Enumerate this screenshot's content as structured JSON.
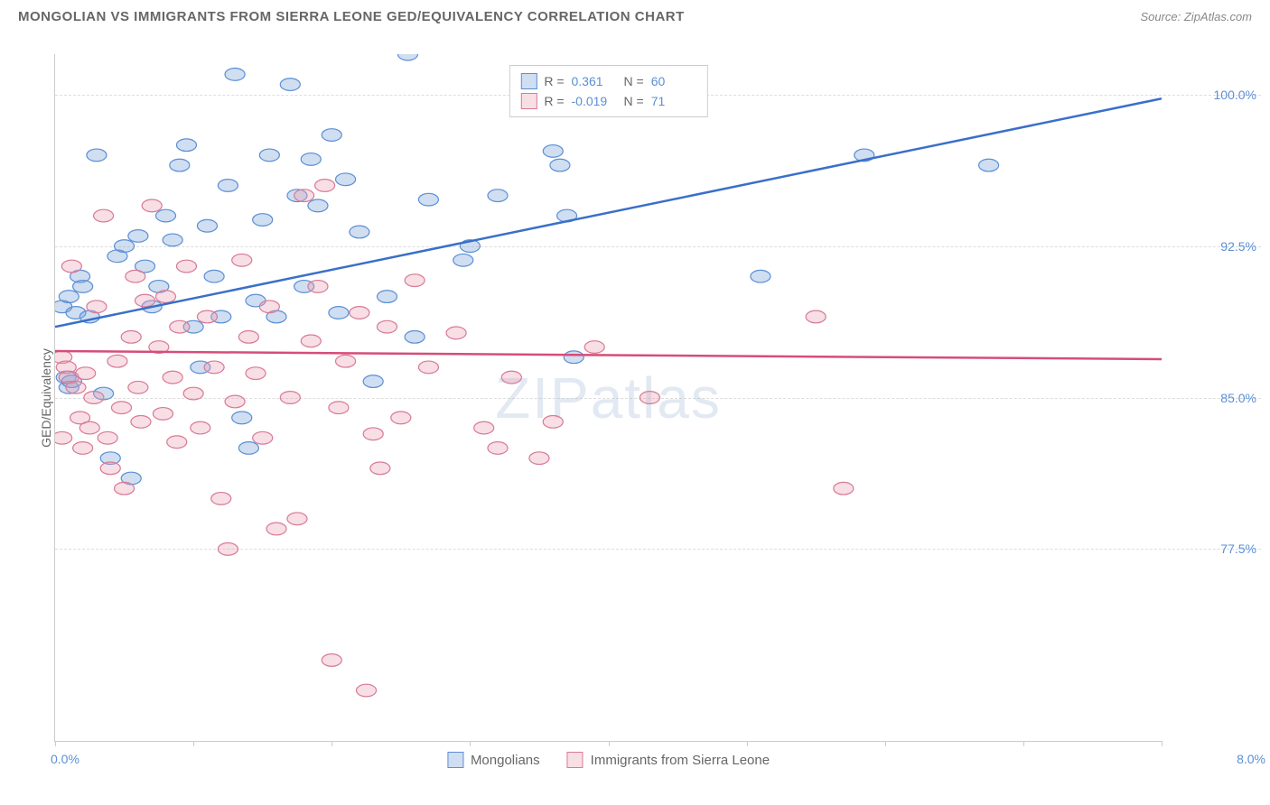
{
  "header": {
    "title": "MONGOLIAN VS IMMIGRANTS FROM SIERRA LEONE GED/EQUIVALENCY CORRELATION CHART",
    "source": "Source: ZipAtlas.com"
  },
  "chart": {
    "type": "scatter",
    "watermark": "ZIPatlas",
    "y_axis_label": "GED/Equivalency",
    "xlim": [
      0.0,
      8.0
    ],
    "ylim": [
      68.0,
      102.0
    ],
    "x_range_start": "0.0%",
    "x_range_end": "8.0%",
    "x_ticks": [
      0,
      1,
      2,
      3,
      4,
      5,
      6,
      7,
      8
    ],
    "y_gridlines": [
      77.5,
      85.0,
      92.5,
      100.0
    ],
    "y_tick_labels": [
      "77.5%",
      "85.0%",
      "92.5%",
      "100.0%"
    ],
    "grid_color": "#dddddd",
    "axis_color": "#cccccc",
    "background_color": "#ffffff",
    "label_color": "#5b8fd6",
    "series": [
      {
        "name": "Mongolians",
        "fill": "rgba(120,160,215,0.35)",
        "stroke": "#5b8fd6",
        "line_color": "#3a6fc9",
        "R": "0.361",
        "N": "60",
        "trend": {
          "x1": 0.0,
          "y1": 88.5,
          "x2": 8.0,
          "y2": 99.8
        },
        "points": [
          [
            0.05,
            89.5
          ],
          [
            0.08,
            86.0
          ],
          [
            0.1,
            85.5
          ],
          [
            0.1,
            90.0
          ],
          [
            0.12,
            85.8
          ],
          [
            0.15,
            89.2
          ],
          [
            0.18,
            91.0
          ],
          [
            0.2,
            90.5
          ],
          [
            0.25,
            89.0
          ],
          [
            0.3,
            97.0
          ],
          [
            0.35,
            85.2
          ],
          [
            0.4,
            82.0
          ],
          [
            0.45,
            92.0
          ],
          [
            0.5,
            92.5
          ],
          [
            0.55,
            81.0
          ],
          [
            0.6,
            93.0
          ],
          [
            0.65,
            91.5
          ],
          [
            0.7,
            89.5
          ],
          [
            0.75,
            90.5
          ],
          [
            0.8,
            94.0
          ],
          [
            0.85,
            92.8
          ],
          [
            0.9,
            96.5
          ],
          [
            0.95,
            97.5
          ],
          [
            1.0,
            88.5
          ],
          [
            1.05,
            86.5
          ],
          [
            1.1,
            93.5
          ],
          [
            1.15,
            91.0
          ],
          [
            1.2,
            89.0
          ],
          [
            1.25,
            95.5
          ],
          [
            1.3,
            101.0
          ],
          [
            1.35,
            84.0
          ],
          [
            1.4,
            82.5
          ],
          [
            1.45,
            89.8
          ],
          [
            1.5,
            93.8
          ],
          [
            1.55,
            97.0
          ],
          [
            1.6,
            89.0
          ],
          [
            1.7,
            100.5
          ],
          [
            1.75,
            95.0
          ],
          [
            1.8,
            90.5
          ],
          [
            1.85,
            96.8
          ],
          [
            1.9,
            94.5
          ],
          [
            2.0,
            98.0
          ],
          [
            2.05,
            89.2
          ],
          [
            2.1,
            95.8
          ],
          [
            2.2,
            93.2
          ],
          [
            2.3,
            85.8
          ],
          [
            2.4,
            90.0
          ],
          [
            2.55,
            102.0
          ],
          [
            2.6,
            88.0
          ],
          [
            2.7,
            94.8
          ],
          [
            2.95,
            91.8
          ],
          [
            3.0,
            92.5
          ],
          [
            3.2,
            95.0
          ],
          [
            3.6,
            97.2
          ],
          [
            3.65,
            96.5
          ],
          [
            3.7,
            94.0
          ],
          [
            3.75,
            87.0
          ],
          [
            5.1,
            91.0
          ],
          [
            5.85,
            97.0
          ],
          [
            6.75,
            96.5
          ]
        ]
      },
      {
        "name": "Immigrants from Sierra Leone",
        "fill": "rgba(235,160,180,0.35)",
        "stroke": "#d87a96",
        "line_color": "#d64d78",
        "R": "-0.019",
        "N": "71",
        "trend": {
          "x1": 0.0,
          "y1": 87.3,
          "x2": 8.0,
          "y2": 86.9
        },
        "points": [
          [
            0.05,
            87.0
          ],
          [
            0.05,
            83.0
          ],
          [
            0.08,
            86.5
          ],
          [
            0.1,
            86.0
          ],
          [
            0.12,
            91.5
          ],
          [
            0.15,
            85.5
          ],
          [
            0.18,
            84.0
          ],
          [
            0.2,
            82.5
          ],
          [
            0.22,
            86.2
          ],
          [
            0.25,
            83.5
          ],
          [
            0.28,
            85.0
          ],
          [
            0.3,
            89.5
          ],
          [
            0.35,
            94.0
          ],
          [
            0.38,
            83.0
          ],
          [
            0.4,
            81.5
          ],
          [
            0.45,
            86.8
          ],
          [
            0.48,
            84.5
          ],
          [
            0.5,
            80.5
          ],
          [
            0.55,
            88.0
          ],
          [
            0.58,
            91.0
          ],
          [
            0.6,
            85.5
          ],
          [
            0.62,
            83.8
          ],
          [
            0.65,
            89.8
          ],
          [
            0.7,
            94.5
          ],
          [
            0.75,
            87.5
          ],
          [
            0.78,
            84.2
          ],
          [
            0.8,
            90.0
          ],
          [
            0.85,
            86.0
          ],
          [
            0.88,
            82.8
          ],
          [
            0.9,
            88.5
          ],
          [
            0.95,
            91.5
          ],
          [
            1.0,
            85.2
          ],
          [
            1.05,
            83.5
          ],
          [
            1.1,
            89.0
          ],
          [
            1.15,
            86.5
          ],
          [
            1.2,
            80.0
          ],
          [
            1.25,
            77.5
          ],
          [
            1.3,
            84.8
          ],
          [
            1.35,
            91.8
          ],
          [
            1.4,
            88.0
          ],
          [
            1.45,
            86.2
          ],
          [
            1.5,
            83.0
          ],
          [
            1.55,
            89.5
          ],
          [
            1.6,
            78.5
          ],
          [
            1.7,
            85.0
          ],
          [
            1.75,
            79.0
          ],
          [
            1.8,
            95.0
          ],
          [
            1.85,
            87.8
          ],
          [
            1.9,
            90.5
          ],
          [
            1.95,
            95.5
          ],
          [
            2.0,
            72.0
          ],
          [
            2.05,
            84.5
          ],
          [
            2.1,
            86.8
          ],
          [
            2.2,
            89.2
          ],
          [
            2.25,
            70.5
          ],
          [
            2.3,
            83.2
          ],
          [
            2.35,
            81.5
          ],
          [
            2.4,
            88.5
          ],
          [
            2.5,
            84.0
          ],
          [
            2.6,
            90.8
          ],
          [
            2.7,
            86.5
          ],
          [
            2.9,
            88.2
          ],
          [
            3.1,
            83.5
          ],
          [
            3.2,
            82.5
          ],
          [
            3.3,
            86.0
          ],
          [
            3.5,
            82.0
          ],
          [
            3.6,
            83.8
          ],
          [
            3.9,
            87.5
          ],
          [
            4.3,
            85.0
          ],
          [
            5.5,
            89.0
          ],
          [
            5.7,
            80.5
          ]
        ]
      }
    ],
    "legend_top": {
      "R_label": "R =",
      "N_label": "N ="
    },
    "legend_bottom": [
      {
        "label": "Mongolians",
        "fill": "rgba(120,160,215,0.35)",
        "stroke": "#5b8fd6"
      },
      {
        "label": "Immigrants from Sierra Leone",
        "fill": "rgba(235,160,180,0.35)",
        "stroke": "#d87a96"
      }
    ]
  }
}
